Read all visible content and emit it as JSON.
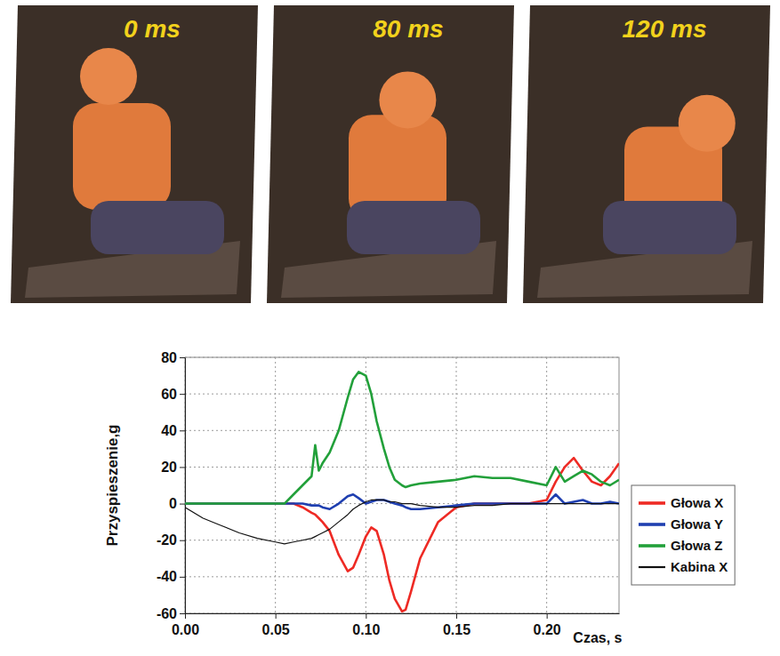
{
  "photos": {
    "labels": [
      "0 ms",
      "80 ms",
      "120 ms"
    ]
  },
  "chart_data": {
    "type": "line",
    "x_label": "Czas, s",
    "y_label": "Przyspieszenie,g",
    "x": [
      0,
      0.01,
      0.02,
      0.03,
      0.04,
      0.05,
      0.055,
      0.06,
      0.065,
      0.07,
      0.072,
      0.074,
      0.076,
      0.08,
      0.085,
      0.09,
      0.093,
      0.096,
      0.1,
      0.103,
      0.106,
      0.11,
      0.113,
      0.116,
      0.12,
      0.122,
      0.125,
      0.13,
      0.14,
      0.15,
      0.16,
      0.17,
      0.18,
      0.19,
      0.2,
      0.205,
      0.21,
      0.215,
      0.22,
      0.225,
      0.23,
      0.235,
      0.24
    ],
    "series": [
      {
        "name": "Głowa X",
        "color": "#ee2a24",
        "values": [
          0,
          0,
          0,
          0,
          0,
          0,
          0,
          0,
          -2,
          -5,
          -6,
          -8,
          -10,
          -15,
          -28,
          -37,
          -35,
          -28,
          -18,
          -13,
          -15,
          -28,
          -42,
          -52,
          -59,
          -58,
          -48,
          -30,
          -10,
          -2,
          0,
          0,
          0,
          0,
          2,
          12,
          20,
          25,
          18,
          12,
          10,
          15,
          22
        ]
      },
      {
        "name": "Głowa Y",
        "color": "#1f3fb0",
        "values": [
          0,
          0,
          0,
          0,
          0,
          0,
          0,
          0,
          0,
          -1,
          -1,
          -1,
          -2,
          -3,
          0,
          4,
          5,
          3,
          0,
          1,
          2,
          2,
          1,
          0,
          -1,
          -2,
          -3,
          -3,
          -2,
          -1,
          0,
          0,
          0,
          0,
          0,
          5,
          0,
          1,
          2,
          0,
          0,
          1,
          0
        ]
      },
      {
        "name": "Głowa Z",
        "color": "#22a03a",
        "values": [
          0,
          0,
          0,
          0,
          0,
          0,
          0,
          5,
          10,
          15,
          32,
          18,
          22,
          28,
          40,
          58,
          68,
          72,
          70,
          60,
          45,
          30,
          20,
          13,
          10,
          9,
          10,
          11,
          12,
          13,
          15,
          14,
          14,
          12,
          10,
          20,
          12,
          15,
          18,
          16,
          12,
          10,
          13
        ]
      },
      {
        "name": "Kabina X",
        "color": "#111111",
        "values": [
          -2,
          -8,
          -12,
          -16,
          -19,
          -21,
          -22,
          -21,
          -20,
          -19,
          -18,
          -17,
          -16,
          -14,
          -10,
          -6,
          -3,
          -1,
          1,
          2,
          2,
          2,
          1,
          1,
          0,
          0,
          0,
          -1,
          -2,
          -2,
          -1,
          -1,
          0,
          0,
          0,
          0,
          0,
          0,
          0,
          0,
          0,
          0,
          0
        ]
      }
    ],
    "xlim": [
      0,
      0.24
    ],
    "ylim": [
      -60,
      80
    ],
    "xticks": [
      {
        "value": 0,
        "label": "0.00"
      },
      0.05,
      {
        "value": 0.1,
        "label": "0.10"
      },
      0.15,
      {
        "value": 0.2,
        "label": "0.20"
      }
    ],
    "yticks": [
      -60,
      -40,
      -20,
      0,
      20,
      40,
      60,
      80
    ],
    "grid": true,
    "legend": "right"
  }
}
